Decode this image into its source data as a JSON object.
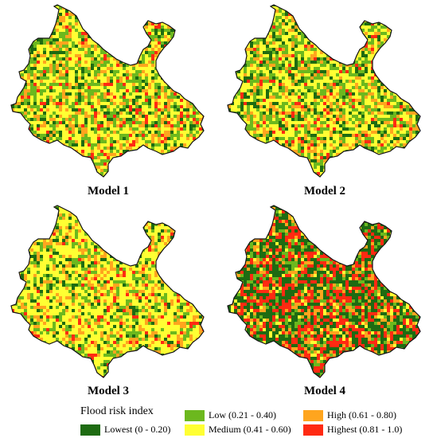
{
  "panels": [
    {
      "title": "Model 1",
      "mix": [
        0.14,
        0.24,
        0.4,
        0.17,
        0.05
      ]
    },
    {
      "title": "Model 2",
      "mix": [
        0.14,
        0.26,
        0.4,
        0.16,
        0.04
      ]
    },
    {
      "title": "Model 3",
      "mix": [
        0.1,
        0.18,
        0.5,
        0.18,
        0.04
      ]
    },
    {
      "title": "Model 4",
      "mix": [
        0.38,
        0.12,
        0.08,
        0.14,
        0.28
      ]
    }
  ],
  "legend": {
    "title": "Flood risk index",
    "classes": [
      {
        "label": "Lowest (0 - 0.20)",
        "color": "#1e6b12"
      },
      {
        "label": "Low (0.21 - 0.40)",
        "color": "#6cb81e"
      },
      {
        "label": "Medium (0.41 - 0.60)",
        "color": "#ffff33"
      },
      {
        "label": "High (0.61 - 0.80)",
        "color": "#ffa51e"
      },
      {
        "label": "Highest (0.81 - 1.0)",
        "color": "#ff2a12"
      }
    ]
  }
}
